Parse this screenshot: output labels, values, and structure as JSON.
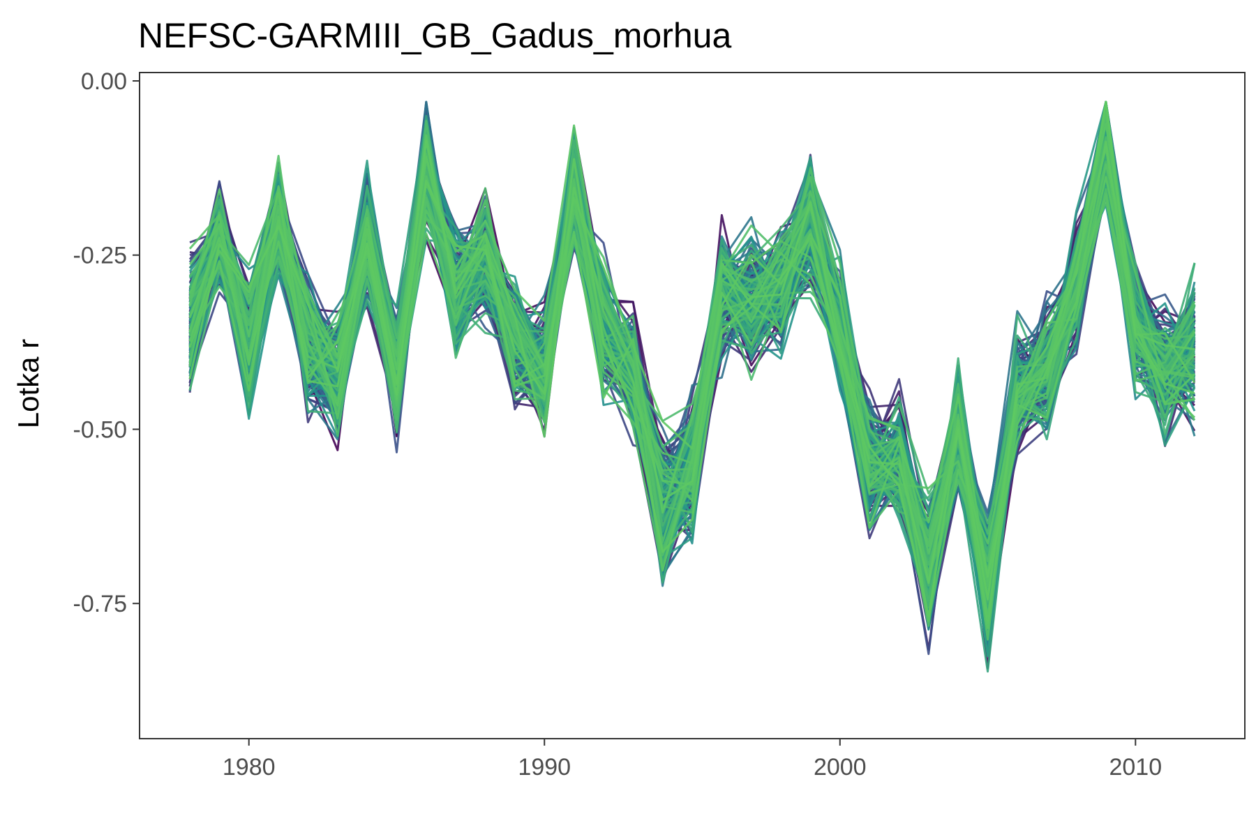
{
  "chart_data": {
    "type": "line",
    "title": "NEFSC-GARMIII_GB_Gadus_morhua",
    "xlabel": "",
    "ylabel": "Lotka r",
    "xlim": [
      1976.3,
      2013.7
    ],
    "ylim": [
      -0.944,
      0.012
    ],
    "x_ticks": [
      1980,
      1990,
      2000,
      2010
    ],
    "x_tick_labels": [
      "1980",
      "1990",
      "2000",
      "2010"
    ],
    "y_ticks": [
      0.0,
      -0.25,
      -0.5,
      -0.75
    ],
    "y_tick_labels": [
      "0.00",
      "-0.25",
      "-0.50",
      "-0.75"
    ],
    "grid": false,
    "legend": "none",
    "palette": [
      "#440154",
      "#3b528b",
      "#21918c",
      "#5ec962"
    ],
    "x": [
      1978,
      1979,
      1980,
      1981,
      1982,
      1983,
      1984,
      1985,
      1986,
      1987,
      1988,
      1989,
      1990,
      1991,
      1992,
      1993,
      1994,
      1995,
      1996,
      1997,
      1998,
      1999,
      2000,
      2001,
      2002,
      2003,
      2004,
      2005,
      2006,
      2007,
      2008,
      2009,
      2010,
      2011,
      2012
    ],
    "series_central": [
      -0.35,
      -0.22,
      -0.38,
      -0.2,
      -0.38,
      -0.42,
      -0.22,
      -0.42,
      -0.12,
      -0.3,
      -0.25,
      -0.38,
      -0.42,
      -0.15,
      -0.35,
      -0.42,
      -0.62,
      -0.55,
      -0.3,
      -0.32,
      -0.3,
      -0.2,
      -0.35,
      -0.55,
      -0.55,
      -0.7,
      -0.5,
      -0.72,
      -0.45,
      -0.42,
      -0.3,
      -0.08,
      -0.35,
      -0.42,
      -0.38
    ],
    "series_spread": [
      0.14,
      0.1,
      0.14,
      0.12,
      0.12,
      0.12,
      0.12,
      0.12,
      0.12,
      0.12,
      0.12,
      0.12,
      0.12,
      0.12,
      0.12,
      0.12,
      0.15,
      0.14,
      0.12,
      0.12,
      0.12,
      0.12,
      0.12,
      0.12,
      0.12,
      0.14,
      0.12,
      0.14,
      0.12,
      0.12,
      0.12,
      0.12,
      0.12,
      0.12,
      0.14
    ],
    "series_count": 180
  }
}
